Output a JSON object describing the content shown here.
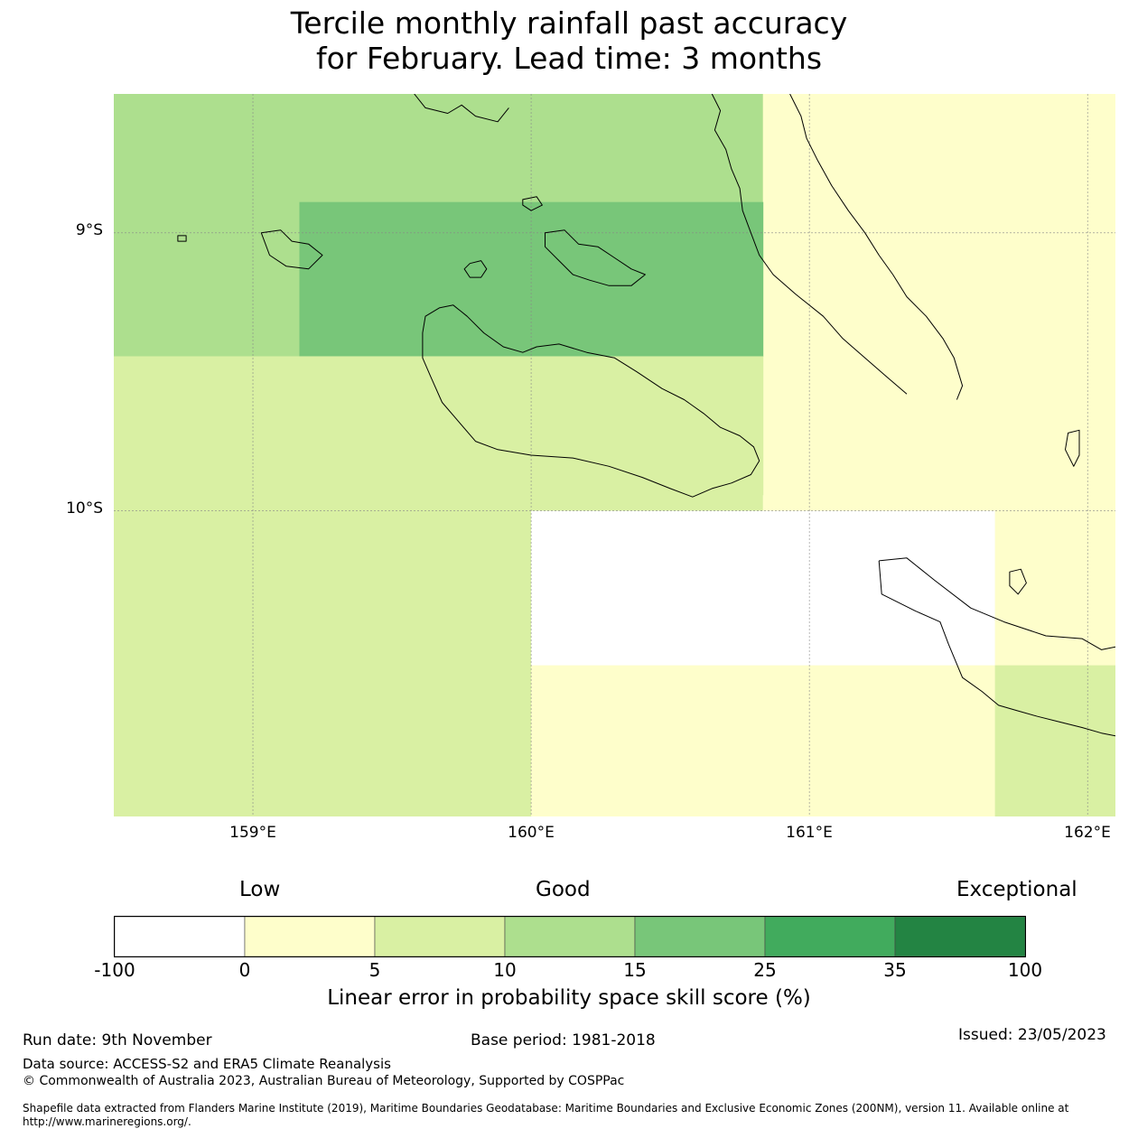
{
  "title": {
    "line1": "Tercile monthly rainfall past accuracy",
    "line2": "for February. Lead time: 3 months"
  },
  "map": {
    "extent": {
      "lon_min": 158.5,
      "lon_max": 162.1,
      "lat_max": -8.5,
      "lat_min": -11.1
    },
    "lat_ticks": [
      {
        "value": -9,
        "label": "9°S"
      },
      {
        "value": -10,
        "label": "10°S"
      }
    ],
    "lon_ticks": [
      {
        "value": 159,
        "label": "159°E"
      },
      {
        "value": 160,
        "label": "160°E"
      },
      {
        "value": 161,
        "label": "161°E"
      },
      {
        "value": 162,
        "label": "162°E"
      }
    ],
    "cells": [
      {
        "lon0": 158.5,
        "lon1": 160.833,
        "lat0": -8.5,
        "lat1": -8.889,
        "color": "#addf8e",
        "category": "10-15"
      },
      {
        "lon0": 160.833,
        "lon1": 162.1,
        "lat0": -8.5,
        "lat1": -9.944,
        "color": "#fefecb",
        "category": "0-5"
      },
      {
        "lon0": 158.5,
        "lon1": 159.167,
        "lat0": -8.889,
        "lat1": -9.444,
        "color": "#addf8e",
        "category": "10-15"
      },
      {
        "lon0": 159.167,
        "lon1": 160.833,
        "lat0": -8.889,
        "lat1": -9.444,
        "color": "#78c679",
        "category": "15-25"
      },
      {
        "lon0": 158.5,
        "lon1": 160.833,
        "lat0": -9.444,
        "lat1": -10.0,
        "color": "#d9f0a3",
        "category": "5-10"
      },
      {
        "lon0": 160.833,
        "lon1": 162.1,
        "lat0": -9.944,
        "lat1": -10.0,
        "color": "#fefecb",
        "category": "0-5"
      },
      {
        "lon0": 158.5,
        "lon1": 160.0,
        "lat0": -10.0,
        "lat1": -11.1,
        "color": "#d9f0a3",
        "category": "5-10"
      },
      {
        "lon0": 160.0,
        "lon1": 161.667,
        "lat0": -10.0,
        "lat1": -10.556,
        "color": "#ffffff",
        "category": "-100-0"
      },
      {
        "lon0": 161.667,
        "lon1": 162.1,
        "lat0": -10.0,
        "lat1": -10.556,
        "color": "#fefecb",
        "category": "0-5"
      },
      {
        "lon0": 160.0,
        "lon1": 161.667,
        "lat0": -10.556,
        "lat1": -11.1,
        "color": "#fefecb",
        "category": "0-5"
      },
      {
        "lon0": 161.667,
        "lon1": 162.1,
        "lat0": -10.556,
        "lat1": -11.1,
        "color": "#d9f0a3",
        "category": "5-10"
      }
    ],
    "coastlines": [
      {
        "name": "guadalcanal",
        "closed": true,
        "points": [
          [
            159.62,
            -9.3
          ],
          [
            159.67,
            -9.27
          ],
          [
            159.72,
            -9.26
          ],
          [
            159.77,
            -9.3
          ],
          [
            159.83,
            -9.36
          ],
          [
            159.9,
            -9.41
          ],
          [
            159.97,
            -9.43
          ],
          [
            160.02,
            -9.41
          ],
          [
            160.1,
            -9.4
          ],
          [
            160.2,
            -9.43
          ],
          [
            160.3,
            -9.45
          ],
          [
            160.38,
            -9.5
          ],
          [
            160.47,
            -9.56
          ],
          [
            160.55,
            -9.6
          ],
          [
            160.62,
            -9.65
          ],
          [
            160.68,
            -9.7
          ],
          [
            160.75,
            -9.73
          ],
          [
            160.8,
            -9.77
          ],
          [
            160.82,
            -9.82
          ],
          [
            160.79,
            -9.87
          ],
          [
            160.72,
            -9.9
          ],
          [
            160.65,
            -9.92
          ],
          [
            160.58,
            -9.95
          ],
          [
            160.5,
            -9.92
          ],
          [
            160.4,
            -9.88
          ],
          [
            160.28,
            -9.84
          ],
          [
            160.15,
            -9.81
          ],
          [
            160.0,
            -9.8
          ],
          [
            159.88,
            -9.78
          ],
          [
            159.8,
            -9.75
          ],
          [
            159.74,
            -9.68
          ],
          [
            159.68,
            -9.61
          ],
          [
            159.64,
            -9.52
          ],
          [
            159.61,
            -9.45
          ],
          [
            159.61,
            -9.36
          ]
        ]
      },
      {
        "name": "malaita",
        "closed": false,
        "points": [
          [
            160.65,
            -8.5
          ],
          [
            160.68,
            -8.56
          ],
          [
            160.66,
            -8.63
          ],
          [
            160.7,
            -8.7
          ],
          [
            160.72,
            -8.77
          ],
          [
            160.75,
            -8.84
          ],
          [
            160.76,
            -8.92
          ],
          [
            160.79,
            -9.0
          ],
          [
            160.82,
            -9.08
          ],
          [
            160.87,
            -9.15
          ],
          [
            160.95,
            -9.22
          ],
          [
            161.05,
            -9.3
          ],
          [
            161.12,
            -9.38
          ],
          [
            161.2,
            -9.45
          ],
          [
            161.28,
            -9.52
          ],
          [
            161.35,
            -9.58
          ]
        ]
      },
      {
        "name": "malaita-east",
        "closed": false,
        "points": [
          [
            160.93,
            -8.5
          ],
          [
            160.97,
            -8.58
          ],
          [
            160.99,
            -8.66
          ],
          [
            161.03,
            -8.74
          ],
          [
            161.08,
            -8.83
          ],
          [
            161.14,
            -8.92
          ],
          [
            161.2,
            -9.0
          ],
          [
            161.25,
            -9.08
          ],
          [
            161.3,
            -9.15
          ],
          [
            161.35,
            -9.23
          ],
          [
            161.42,
            -9.3
          ],
          [
            161.48,
            -9.38
          ],
          [
            161.52,
            -9.45
          ],
          [
            161.55,
            -9.55
          ],
          [
            161.53,
            -9.6
          ]
        ]
      },
      {
        "name": "florida-islands",
        "closed": true,
        "points": [
          [
            160.05,
            -9.0
          ],
          [
            160.12,
            -8.99
          ],
          [
            160.17,
            -9.04
          ],
          [
            160.24,
            -9.05
          ],
          [
            160.3,
            -9.09
          ],
          [
            160.36,
            -9.13
          ],
          [
            160.41,
            -9.15
          ],
          [
            160.36,
            -9.19
          ],
          [
            160.28,
            -9.19
          ],
          [
            160.21,
            -9.17
          ],
          [
            160.15,
            -9.15
          ],
          [
            160.1,
            -9.1
          ],
          [
            160.05,
            -9.05
          ]
        ]
      },
      {
        "name": "russell-islands",
        "closed": true,
        "points": [
          [
            159.03,
            -9.0
          ],
          [
            159.1,
            -8.99
          ],
          [
            159.14,
            -9.03
          ],
          [
            159.2,
            -9.04
          ],
          [
            159.25,
            -9.08
          ],
          [
            159.2,
            -9.13
          ],
          [
            159.12,
            -9.12
          ],
          [
            159.06,
            -9.08
          ]
        ]
      },
      {
        "name": "savo",
        "closed": true,
        "points": [
          [
            159.78,
            -9.11
          ],
          [
            159.82,
            -9.1
          ],
          [
            159.84,
            -9.13
          ],
          [
            159.82,
            -9.16
          ],
          [
            159.78,
            -9.16
          ],
          [
            159.76,
            -9.13
          ]
        ]
      },
      {
        "name": "ngella-north",
        "closed": true,
        "points": [
          [
            159.97,
            -8.88
          ],
          [
            160.02,
            -8.87
          ],
          [
            160.04,
            -8.9
          ],
          [
            160.0,
            -8.92
          ],
          [
            159.97,
            -8.9
          ]
        ]
      },
      {
        "name": "small-west",
        "closed": true,
        "points": [
          [
            158.73,
            -9.01
          ],
          [
            158.76,
            -9.01
          ],
          [
            158.76,
            -9.03
          ],
          [
            158.73,
            -9.03
          ]
        ]
      },
      {
        "name": "north-coast",
        "closed": false,
        "points": [
          [
            159.58,
            -8.5
          ],
          [
            159.62,
            -8.55
          ],
          [
            159.7,
            -8.57
          ],
          [
            159.75,
            -8.54
          ],
          [
            159.8,
            -8.58
          ],
          [
            159.88,
            -8.6
          ],
          [
            159.92,
            -8.55
          ]
        ]
      },
      {
        "name": "makira",
        "closed": false,
        "points": [
          [
            161.25,
            -10.18
          ],
          [
            161.35,
            -10.17
          ],
          [
            161.45,
            -10.25
          ],
          [
            161.58,
            -10.35
          ],
          [
            161.7,
            -10.4
          ],
          [
            161.85,
            -10.45
          ],
          [
            161.98,
            -10.46
          ],
          [
            162.05,
            -10.5
          ],
          [
            162.1,
            -10.49
          ]
        ]
      },
      {
        "name": "makira-south",
        "closed": false,
        "points": [
          [
            161.25,
            -10.18
          ],
          [
            161.26,
            -10.3
          ],
          [
            161.38,
            -10.36
          ],
          [
            161.47,
            -10.4
          ],
          [
            161.5,
            -10.48
          ],
          [
            161.55,
            -10.6
          ],
          [
            161.62,
            -10.65
          ],
          [
            161.68,
            -10.7
          ],
          [
            161.75,
            -10.72
          ],
          [
            161.82,
            -10.74
          ],
          [
            161.9,
            -10.76
          ],
          [
            161.98,
            -10.78
          ],
          [
            162.05,
            -10.8
          ],
          [
            162.1,
            -10.81
          ]
        ]
      },
      {
        "name": "ugi",
        "closed": true,
        "points": [
          [
            161.72,
            -10.22
          ],
          [
            161.76,
            -10.21
          ],
          [
            161.78,
            -10.26
          ],
          [
            161.75,
            -10.3
          ],
          [
            161.72,
            -10.27
          ]
        ]
      },
      {
        "name": "ulawa",
        "closed": true,
        "points": [
          [
            161.93,
            -9.72
          ],
          [
            161.97,
            -9.71
          ],
          [
            161.97,
            -9.8
          ],
          [
            161.95,
            -9.84
          ],
          [
            161.92,
            -9.78
          ]
        ]
      }
    ]
  },
  "legend": {
    "category_labels": {
      "low": "Low",
      "good": "Good",
      "exceptional": "Exceptional"
    },
    "bins": [
      {
        "from": -100,
        "to": 0,
        "color": "#ffffff"
      },
      {
        "from": 0,
        "to": 5,
        "color": "#fefecb"
      },
      {
        "from": 5,
        "to": 10,
        "color": "#d9f0a3"
      },
      {
        "from": 10,
        "to": 15,
        "color": "#addf8e"
      },
      {
        "from": 15,
        "to": 25,
        "color": "#78c679"
      },
      {
        "from": 25,
        "to": 35,
        "color": "#41ab5d"
      },
      {
        "from": 35,
        "to": 100,
        "color": "#238443"
      }
    ],
    "tick_labels": [
      "-100",
      "0",
      "5",
      "10",
      "15",
      "25",
      "35",
      "100"
    ],
    "title": "Linear error in probability space skill score (%)"
  },
  "footer": {
    "run_date": "Run date: 9th November",
    "base_period": "Base period: 1981-2018",
    "issued": "Issued: 23/05/2023",
    "data_source": "Data source: ACCESS-S2 and ERA5 Climate Reanalysis",
    "copyright": "© Commonwealth of Australia 2023, Australian Bureau of Meteorology, Supported by COSPPac",
    "shapefile_line1": "Shapefile data extracted from Flanders Marine Institute (2019), Maritime Boundaries Geodatabase: Maritime Boundaries and Exclusive Economic Zones (200NM), version 11. Available online at",
    "shapefile_line2": "http://www.marineregions.org/."
  }
}
